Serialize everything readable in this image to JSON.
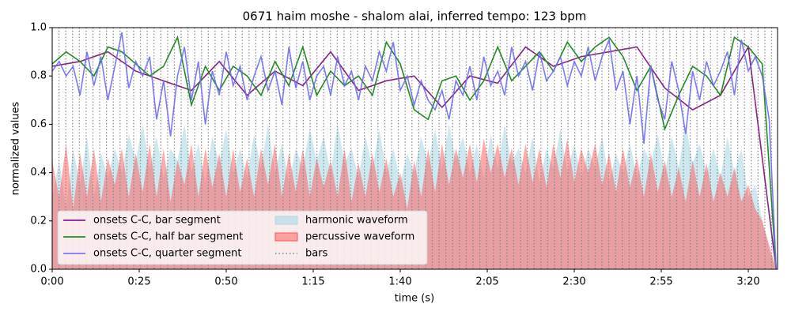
{
  "chart_data": {
    "type": "line",
    "title": "0671 haim moshe - shalom alai, inferred tempo: 123 bpm",
    "x_label": "time (s)",
    "y_label": "normalized values",
    "xlim": [
      0,
      208.4
    ],
    "ylim": [
      0,
      1
    ],
    "xticks": [
      {
        "value": 0,
        "label": "0:00"
      },
      {
        "value": 25,
        "label": "0:25"
      },
      {
        "value": 50,
        "label": "0:50"
      },
      {
        "value": 75,
        "label": "1:15"
      },
      {
        "value": 100,
        "label": "1:40"
      },
      {
        "value": 125,
        "label": "2:05"
      },
      {
        "value": 150,
        "label": "2:30"
      },
      {
        "value": 175,
        "label": "2:55"
      },
      {
        "value": 200,
        "label": "3:20"
      }
    ],
    "yticks": [
      {
        "value": 0,
        "label": "0.0"
      },
      0.2,
      0.4,
      0.6,
      0.8,
      {
        "value": 1,
        "label": "1.0"
      }
    ],
    "legend": "lower left",
    "series": [
      {
        "name": "onsets C-C, bar segment",
        "style": "line",
        "color": "#882288",
        "alpha": 1,
        "x": [
          0,
          8,
          16,
          24,
          32,
          40,
          48,
          56,
          64,
          72,
          80,
          88,
          96,
          104,
          112,
          120,
          128,
          136,
          144,
          152,
          160,
          168,
          176,
          184,
          192,
          200,
          208
        ],
        "values": [
          0.84,
          0.86,
          0.9,
          0.82,
          0.78,
          0.74,
          0.86,
          0.72,
          0.82,
          0.76,
          0.9,
          0.74,
          0.78,
          0.8,
          0.67,
          0.8,
          0.77,
          0.92,
          0.84,
          0.88,
          0.9,
          0.92,
          0.75,
          0.66,
          0.72,
          0.92,
          0.0
        ]
      },
      {
        "name": "onsets C-C, half bar segment",
        "style": "line",
        "color": "#228b22",
        "alpha": 1,
        "x": [
          0,
          4,
          8,
          12,
          16,
          20,
          24,
          28,
          32,
          36,
          40,
          44,
          48,
          52,
          56,
          60,
          64,
          68,
          72,
          76,
          80,
          84,
          88,
          92,
          96,
          100,
          104,
          108,
          112,
          116,
          120,
          124,
          128,
          132,
          136,
          140,
          144,
          148,
          152,
          156,
          160,
          164,
          168,
          172,
          176,
          180,
          184,
          188,
          192,
          196,
          200,
          204,
          208
        ],
        "values": [
          0.85,
          0.9,
          0.86,
          0.8,
          0.92,
          0.9,
          0.85,
          0.8,
          0.84,
          0.96,
          0.68,
          0.84,
          0.74,
          0.84,
          0.8,
          0.72,
          0.86,
          0.76,
          0.92,
          0.72,
          0.82,
          0.76,
          0.8,
          0.72,
          0.94,
          0.85,
          0.66,
          0.62,
          0.78,
          0.8,
          0.7,
          0.78,
          0.92,
          0.78,
          0.84,
          0.9,
          0.82,
          0.94,
          0.86,
          0.92,
          0.96,
          0.88,
          0.74,
          0.84,
          0.58,
          0.72,
          0.84,
          0.8,
          0.72,
          0.96,
          0.92,
          0.85,
          0.0
        ]
      },
      {
        "name": "onsets C-C, quarter segment",
        "style": "line",
        "color": "#6b6bf5",
        "alpha": 0.9,
        "x": [
          0,
          2,
          4,
          6,
          8,
          10,
          12,
          14,
          16,
          18,
          20,
          22,
          24,
          26,
          28,
          30,
          32,
          34,
          36,
          38,
          40,
          42,
          44,
          46,
          48,
          50,
          52,
          54,
          56,
          58,
          60,
          62,
          64,
          66,
          68,
          70,
          72,
          74,
          76,
          78,
          80,
          82,
          84,
          86,
          88,
          90,
          92,
          94,
          96,
          98,
          100,
          102,
          104,
          106,
          108,
          110,
          112,
          114,
          116,
          118,
          120,
          122,
          124,
          126,
          128,
          130,
          132,
          134,
          136,
          138,
          140,
          142,
          144,
          146,
          148,
          150,
          152,
          154,
          156,
          158,
          160,
          162,
          164,
          166,
          168,
          170,
          172,
          174,
          176,
          178,
          180,
          182,
          184,
          186,
          188,
          190,
          192,
          194,
          196,
          198,
          200,
          202,
          204,
          206,
          208
        ],
        "values": [
          0.82,
          0.86,
          0.8,
          0.84,
          0.72,
          0.9,
          0.76,
          0.88,
          0.7,
          0.84,
          0.98,
          0.75,
          0.86,
          0.8,
          0.88,
          0.62,
          0.78,
          0.55,
          0.8,
          0.92,
          0.7,
          0.86,
          0.6,
          0.82,
          0.72,
          0.9,
          0.76,
          0.84,
          0.7,
          0.8,
          0.88,
          0.74,
          0.82,
          0.68,
          0.92,
          0.75,
          0.86,
          0.7,
          0.8,
          0.84,
          0.72,
          0.88,
          0.76,
          0.82,
          0.7,
          0.84,
          0.78,
          0.9,
          0.82,
          0.94,
          0.74,
          0.8,
          0.68,
          0.78,
          0.7,
          0.66,
          0.74,
          0.62,
          0.78,
          0.72,
          0.84,
          0.7,
          0.88,
          0.76,
          0.82,
          0.72,
          0.92,
          0.8,
          0.86,
          0.74,
          0.9,
          0.78,
          0.82,
          0.88,
          0.76,
          0.86,
          0.8,
          0.92,
          0.78,
          0.88,
          0.95,
          0.74,
          0.82,
          0.6,
          0.8,
          0.52,
          0.84,
          0.7,
          0.62,
          0.86,
          0.74,
          0.56,
          0.82,
          0.7,
          0.86,
          0.76,
          0.82,
          0.9,
          0.72,
          0.95,
          0.82,
          0.88,
          0.8,
          0.62,
          0.0
        ]
      },
      {
        "name": "harmonic waveform",
        "style": "area",
        "color": "#add8e6",
        "alpha": 0.6,
        "x": [
          0,
          2,
          4,
          6,
          8,
          10,
          12,
          14,
          16,
          18,
          20,
          22,
          24,
          26,
          28,
          30,
          32,
          34,
          36,
          38,
          40,
          42,
          44,
          46,
          48,
          50,
          52,
          54,
          56,
          58,
          60,
          62,
          64,
          66,
          68,
          70,
          72,
          74,
          76,
          78,
          80,
          82,
          84,
          86,
          88,
          90,
          92,
          94,
          96,
          98,
          100,
          102,
          104,
          106,
          108,
          110,
          112,
          114,
          116,
          118,
          120,
          122,
          124,
          126,
          128,
          130,
          132,
          134,
          136,
          138,
          140,
          142,
          144,
          146,
          148,
          150,
          152,
          154,
          156,
          158,
          160,
          162,
          164,
          166,
          168,
          170,
          172,
          174,
          176,
          178,
          180,
          182,
          184,
          186,
          188,
          190,
          192,
          194,
          196,
          198,
          200,
          202,
          204,
          206,
          208
        ],
        "values": [
          0.3,
          0.45,
          0.25,
          0.5,
          0.35,
          0.55,
          0.3,
          0.48,
          0.38,
          0.5,
          0.4,
          0.56,
          0.45,
          0.6,
          0.42,
          0.55,
          0.38,
          0.5,
          0.45,
          0.6,
          0.4,
          0.52,
          0.36,
          0.55,
          0.44,
          0.58,
          0.4,
          0.5,
          0.38,
          0.56,
          0.42,
          0.6,
          0.4,
          0.52,
          0.36,
          0.5,
          0.42,
          0.58,
          0.45,
          0.55,
          0.4,
          0.6,
          0.44,
          0.5,
          0.38,
          0.55,
          0.42,
          0.58,
          0.4,
          0.5,
          0.36,
          0.48,
          0.4,
          0.55,
          0.44,
          0.58,
          0.42,
          0.6,
          0.45,
          0.55,
          0.4,
          0.52,
          0.38,
          0.56,
          0.42,
          0.6,
          0.44,
          0.5,
          0.4,
          0.55,
          0.36,
          0.5,
          0.42,
          0.58,
          0.4,
          0.52,
          0.38,
          0.5,
          0.42,
          0.55,
          0.36,
          0.48,
          0.4,
          0.52,
          0.38,
          0.5,
          0.44,
          0.56,
          0.4,
          0.55,
          0.42,
          0.6,
          0.44,
          0.52,
          0.4,
          0.5,
          0.38,
          0.55,
          0.4,
          0.5,
          0.3,
          0.35,
          0.2,
          0.08,
          0.0
        ]
      },
      {
        "name": "percussive waveform",
        "style": "area",
        "color": "#ff5555",
        "alpha": 0.5,
        "x": [
          0,
          2,
          4,
          6,
          8,
          10,
          12,
          14,
          16,
          18,
          20,
          22,
          24,
          26,
          28,
          30,
          32,
          34,
          36,
          38,
          40,
          42,
          44,
          46,
          48,
          50,
          52,
          54,
          56,
          58,
          60,
          62,
          64,
          66,
          68,
          70,
          72,
          74,
          76,
          78,
          80,
          82,
          84,
          86,
          88,
          90,
          92,
          94,
          96,
          98,
          100,
          102,
          104,
          106,
          108,
          110,
          112,
          114,
          116,
          118,
          120,
          122,
          124,
          126,
          128,
          130,
          132,
          134,
          136,
          138,
          140,
          142,
          144,
          146,
          148,
          150,
          152,
          154,
          156,
          158,
          160,
          162,
          164,
          166,
          168,
          170,
          172,
          174,
          176,
          178,
          180,
          182,
          184,
          186,
          188,
          190,
          192,
          194,
          196,
          198,
          200,
          202,
          204,
          206,
          208
        ],
        "values": [
          0.45,
          0.3,
          0.52,
          0.25,
          0.48,
          0.3,
          0.5,
          0.28,
          0.46,
          0.35,
          0.5,
          0.3,
          0.48,
          0.32,
          0.52,
          0.3,
          0.5,
          0.28,
          0.45,
          0.35,
          0.52,
          0.3,
          0.5,
          0.34,
          0.48,
          0.3,
          0.5,
          0.32,
          0.46,
          0.3,
          0.5,
          0.35,
          0.52,
          0.3,
          0.48,
          0.32,
          0.5,
          0.3,
          0.46,
          0.34,
          0.45,
          0.3,
          0.5,
          0.28,
          0.44,
          0.3,
          0.48,
          0.32,
          0.46,
          0.3,
          0.4,
          0.25,
          0.45,
          0.3,
          0.5,
          0.32,
          0.52,
          0.35,
          0.5,
          0.38,
          0.52,
          0.36,
          0.54,
          0.4,
          0.52,
          0.38,
          0.5,
          0.35,
          0.52,
          0.36,
          0.5,
          0.34,
          0.52,
          0.38,
          0.54,
          0.36,
          0.5,
          0.4,
          0.52,
          0.35,
          0.48,
          0.32,
          0.5,
          0.34,
          0.46,
          0.3,
          0.48,
          0.32,
          0.45,
          0.3,
          0.42,
          0.28,
          0.45,
          0.3,
          0.44,
          0.28,
          0.4,
          0.3,
          0.42,
          0.28,
          0.35,
          0.25,
          0.2,
          0.1,
          0.0
        ]
      },
      {
        "name": "bars",
        "style": "vlines",
        "color": "#808080",
        "alpha": 1,
        "x": [
          0,
          1.95,
          3.9,
          5.85,
          7.8,
          9.75,
          11.7,
          13.65,
          15.6,
          17.55,
          19.5,
          21.45,
          23.4,
          25.35,
          27.3,
          29.25,
          31.2,
          33.15,
          35.1,
          37.05,
          39,
          40.95,
          42.9,
          44.85,
          46.8,
          48.75,
          50.7,
          52.65,
          54.6,
          56.55,
          58.5,
          60.45,
          62.4,
          64.35,
          66.3,
          68.25,
          70.2,
          72.15,
          74.1,
          76.05,
          78,
          79.95,
          81.9,
          83.85,
          85.8,
          87.75,
          89.7,
          91.65,
          93.6,
          95.55,
          97.5,
          99.45,
          101.4,
          103.35,
          105.3,
          107.25,
          109.2,
          111.15,
          113.1,
          115.05,
          117,
          118.95,
          120.9,
          122.85,
          124.8,
          126.75,
          128.7,
          130.65,
          132.6,
          134.55,
          136.5,
          138.45,
          140.4,
          142.35,
          144.3,
          146.25,
          148.2,
          150.15,
          152.1,
          154.05,
          156,
          157.95,
          159.9,
          161.85,
          163.8,
          165.75,
          167.7,
          169.65,
          171.6,
          173.55,
          175.5,
          177.45,
          179.4,
          181.35,
          183.3,
          185.25,
          187.2,
          189.15,
          191.1,
          193.05,
          195,
          196.95,
          198.9,
          200.85,
          202.8,
          204.75,
          206.7
        ]
      }
    ]
  }
}
